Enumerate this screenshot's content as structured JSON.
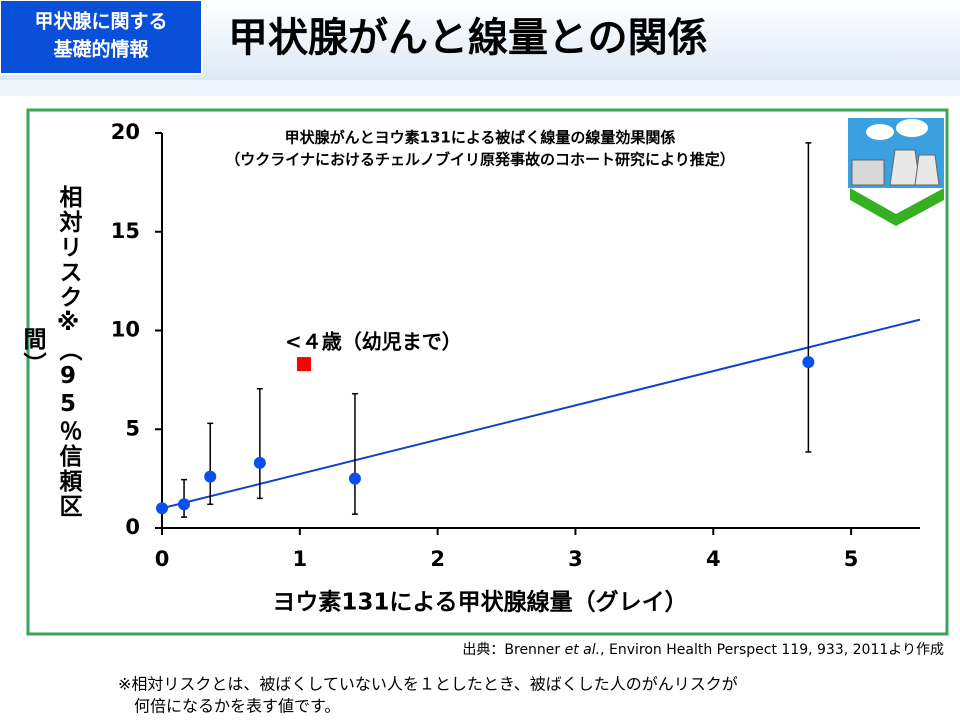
{
  "header": {
    "badge": [
      "甲状腺に関する",
      "基礎的情報"
    ],
    "title": "甲状腺がんと線量との関係"
  },
  "chart_data": {
    "type": "scatter",
    "title": [
      "甲状腺がんとヨウ素131による被ばく線量の線量効果関係",
      "（ウクライナにおけるチェルノブイリ原発事故のコホート研究により推定）"
    ],
    "xlabel": "ヨウ素131による甲状腺線量（グレイ）",
    "ylabel": "相対リスク※（95％信頼区間）",
    "annotation": "<４歳（幼児まで）",
    "xlim": [
      0,
      5.5
    ],
    "ylim": [
      0,
      20
    ],
    "xticks": [
      0,
      1,
      2,
      3,
      4,
      5
    ],
    "yticks": [
      0,
      5,
      10,
      15,
      20
    ],
    "series": [
      {
        "color": "#0a50f0",
        "marker": "circle",
        "x": [
          0,
          0.16,
          0.35,
          0.71,
          1.4,
          4.69
        ],
        "values": [
          1.0,
          1.2,
          2.6,
          3.3,
          2.5,
          8.4
        ],
        "lower": [
          null,
          0.55,
          1.2,
          1.5,
          0.7,
          3.85
        ],
        "upper": [
          null,
          2.45,
          5.3,
          7.05,
          6.8,
          19.5
        ]
      },
      {
        "color": "#ff0000",
        "marker": "square",
        "x": [
          1.03
        ],
        "values": [
          8.3
        ]
      }
    ],
    "fit_line": {
      "color": "#1040d0",
      "x": [
        0,
        5.5
      ],
      "values": [
        1.0,
        10.55
      ]
    }
  },
  "source": [
    "出典：Brenner ",
    "et al.",
    ", Environ Health Perspect 119, 933, 2011より作成"
  ],
  "footnote": [
    "※相対リスクとは、被ばくしていない人を１としたとき、被ばくした人のがんリスクが",
    "何倍になるかを表す値です。"
  ]
}
